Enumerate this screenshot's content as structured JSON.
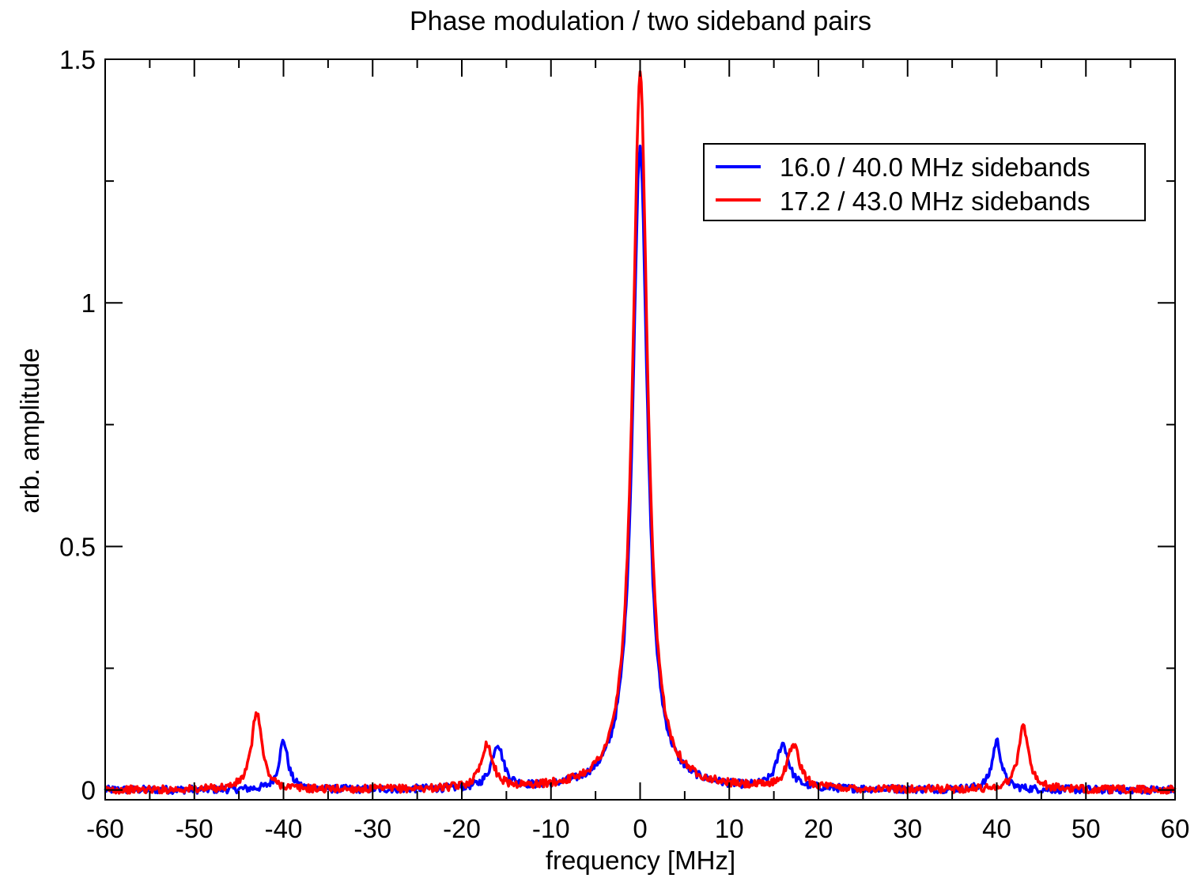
{
  "chart_data": {
    "type": "line",
    "title": "Phase modulation / two sideband pairs",
    "xlabel": "frequency [MHz]",
    "ylabel": "arb. amplitude",
    "xlim": [
      -60,
      60
    ],
    "ylim": [
      -0.02,
      1.5
    ],
    "xticks": [
      -60,
      -50,
      -40,
      -30,
      -20,
      -10,
      0,
      10,
      20,
      30,
      40,
      50,
      60
    ],
    "xtick_labels": [
      "-60",
      "-50",
      "-40",
      "-30",
      "-20",
      "-10",
      "0",
      "10",
      "20",
      "30",
      "40",
      "50",
      "60"
    ],
    "yticks": [
      0,
      0.5,
      1,
      1.5
    ],
    "ytick_labels": [
      "0",
      "0.5",
      "1",
      "1.5"
    ],
    "grid": false,
    "legend_position": "top-right",
    "series": [
      {
        "name": "16.0 / 40.0 MHz sidebands",
        "color": "#0000ff",
        "peaks": [
          {
            "x": 0,
            "height": 1.32,
            "width": 1.0
          },
          {
            "x": -16.0,
            "height": 0.09,
            "width": 0.8
          },
          {
            "x": 16.0,
            "height": 0.09,
            "width": 0.8
          },
          {
            "x": -40.0,
            "height": 0.1,
            "width": 0.6
          },
          {
            "x": 40.0,
            "height": 0.1,
            "width": 0.6
          }
        ]
      },
      {
        "name": "17.2 / 43.0 MHz sidebands",
        "color": "#ff0000",
        "peaks": [
          {
            "x": 0,
            "height": 1.47,
            "width": 1.0
          },
          {
            "x": -17.2,
            "height": 0.09,
            "width": 0.8
          },
          {
            "x": 17.2,
            "height": 0.09,
            "width": 0.8
          },
          {
            "x": -43.0,
            "height": 0.16,
            "width": 0.7
          },
          {
            "x": 43.0,
            "height": 0.13,
            "width": 0.7
          }
        ]
      }
    ]
  }
}
